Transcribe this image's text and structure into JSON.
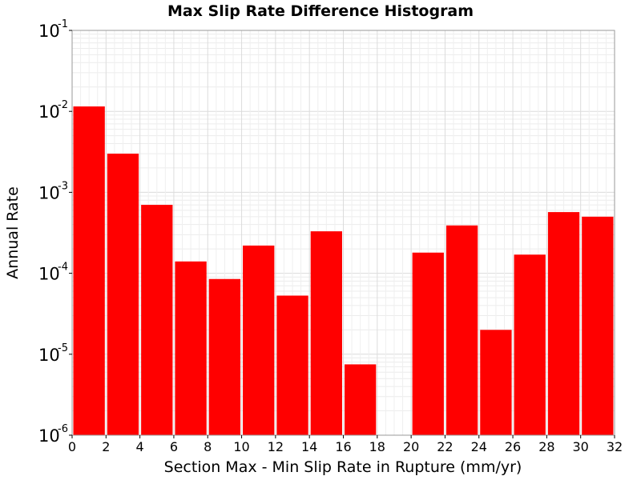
{
  "chart_data": {
    "type": "bar",
    "title": "Max Slip Rate Difference Histogram",
    "xlabel": "Section Max - Min Slip Rate in Rupture (mm/yr)",
    "ylabel": "Annual Rate",
    "xlim": [
      0,
      32
    ],
    "ylim": [
      1e-06,
      0.1
    ],
    "yscale": "log",
    "bin_width": 2,
    "x_ticks": [
      "0",
      "2",
      "4",
      "6",
      "8",
      "10",
      "12",
      "14",
      "16",
      "18",
      "20",
      "22",
      "24",
      "26",
      "28",
      "30",
      "32"
    ],
    "y_ticks": [
      {
        "base": "10",
        "exp": "-1"
      },
      {
        "base": "10",
        "exp": "-2"
      },
      {
        "base": "10",
        "exp": "-3"
      },
      {
        "base": "10",
        "exp": "-4"
      },
      {
        "base": "10",
        "exp": "-5"
      },
      {
        "base": "10",
        "exp": "-6"
      }
    ],
    "grid": true,
    "bar_color": "#ff0000",
    "bins": [
      {
        "x": 1,
        "value": 0.0115
      },
      {
        "x": 3,
        "value": 0.003
      },
      {
        "x": 5,
        "value": 0.0007
      },
      {
        "x": 7,
        "value": 0.00014
      },
      {
        "x": 9,
        "value": 8.5e-05
      },
      {
        "x": 11,
        "value": 0.00022
      },
      {
        "x": 13,
        "value": 5.3e-05
      },
      {
        "x": 15,
        "value": 0.00033
      },
      {
        "x": 17,
        "value": 7.5e-06
      },
      {
        "x": 19,
        "value": 0
      },
      {
        "x": 21,
        "value": 0.00018
      },
      {
        "x": 23,
        "value": 0.00039
      },
      {
        "x": 25,
        "value": 2e-05
      },
      {
        "x": 27,
        "value": 0.00017
      },
      {
        "x": 29,
        "value": 0.00057
      },
      {
        "x": 31,
        "value": 0.0005
      }
    ]
  }
}
